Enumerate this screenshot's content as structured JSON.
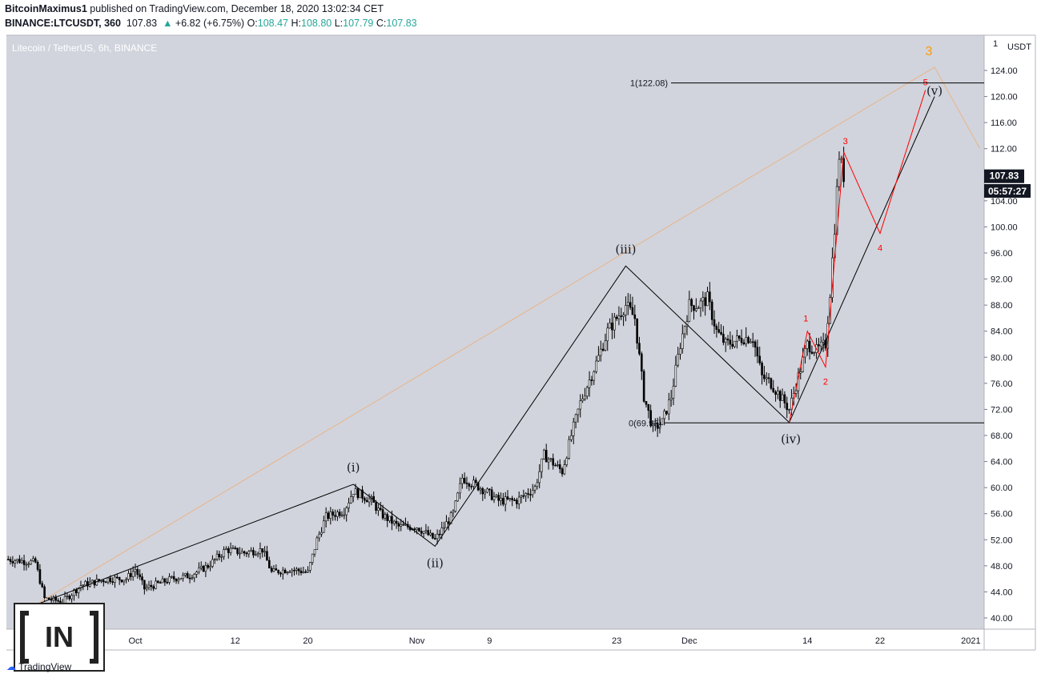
{
  "header": {
    "author": "BitcoinMaximus1",
    "published_text": "published on TradingView.com, December 18, 2020 13:02:34 CET",
    "symbol": "BINANCE:LTCUSDT, 360",
    "last": "107.83",
    "change": "+6.82 (+6.75%)",
    "open_label": "O:",
    "open": "108.47",
    "high_label": "H:",
    "high": "108.80",
    "low_label": "L:",
    "low": "107.79",
    "close_label": "C:",
    "close": "107.83"
  },
  "chart_title": "Litecoin / TetherUS, 6h, BINANCE",
  "currency": "USDT",
  "axis_top_label": "1",
  "price_tag": "107.83",
  "countdown": "05:57:27",
  "fib_top_label": "1(122.08)",
  "fib_bottom_label": "0(69.93)",
  "logo_text": "IN",
  "brand": "TradingView",
  "colors": {
    "background": "#d1d4dc",
    "candle": "#000000",
    "wave_major": "#000000",
    "wave_minor": "#ff0000",
    "wave_orange": "#ff9800",
    "trend_tan": "#e8b48a",
    "positive": "#26a69a"
  },
  "chart_data": {
    "type": "line",
    "title": "Litecoin / TetherUS, 6h, BINANCE",
    "ylabel": "USDT",
    "ylim": [
      38,
      126
    ],
    "y_ticks": [
      40,
      44,
      48,
      52,
      56,
      60,
      64,
      68,
      72,
      76,
      80,
      84,
      88,
      92,
      96,
      100,
      104,
      108,
      112,
      116,
      120,
      124
    ],
    "x_ticks": [
      {
        "label": "Oct",
        "date": "2020-10-01"
      },
      {
        "label": "12",
        "date": "2020-10-12"
      },
      {
        "label": "20",
        "date": "2020-10-20"
      },
      {
        "label": "Nov",
        "date": "2020-11-01"
      },
      {
        "label": "9",
        "date": "2020-11-09"
      },
      {
        "label": "23",
        "date": "2020-11-23"
      },
      {
        "label": "Dec",
        "date": "2020-12-01"
      },
      {
        "label": "14",
        "date": "2020-12-14"
      },
      {
        "label": "22",
        "date": "2020-12-22"
      },
      {
        "label": "2021",
        "date": "2021-01-01"
      }
    ],
    "price_path": [
      {
        "date": "2020-09-17",
        "price": 49.0
      },
      {
        "date": "2020-09-20",
        "price": 48.5
      },
      {
        "date": "2020-09-21",
        "price": 43.0
      },
      {
        "date": "2020-09-23",
        "price": 42.5
      },
      {
        "date": "2020-09-25",
        "price": 45.0
      },
      {
        "date": "2020-09-28",
        "price": 46.0
      },
      {
        "date": "2020-09-30",
        "price": 46.0
      },
      {
        "date": "2020-10-01",
        "price": 47.5
      },
      {
        "date": "2020-10-02",
        "price": 44.5
      },
      {
        "date": "2020-10-05",
        "price": 46.0
      },
      {
        "date": "2020-10-07",
        "price": 46.5
      },
      {
        "date": "2020-10-09",
        "price": 48.0
      },
      {
        "date": "2020-10-11",
        "price": 50.5
      },
      {
        "date": "2020-10-13",
        "price": 50.0
      },
      {
        "date": "2020-10-15",
        "price": 50.5
      },
      {
        "date": "2020-10-16",
        "price": 47.0
      },
      {
        "date": "2020-10-18",
        "price": 47.5
      },
      {
        "date": "2020-10-20",
        "price": 47.0
      },
      {
        "date": "2020-10-21",
        "price": 52.0
      },
      {
        "date": "2020-10-22",
        "price": 55.5
      },
      {
        "date": "2020-10-24",
        "price": 56.5
      },
      {
        "date": "2020-10-25",
        "price": 59.5
      },
      {
        "date": "2020-10-27",
        "price": 58.0
      },
      {
        "date": "2020-10-28",
        "price": 56.0
      },
      {
        "date": "2020-10-30",
        "price": 54.0
      },
      {
        "date": "2020-11-01",
        "price": 54.0
      },
      {
        "date": "2020-11-03",
        "price": 52.0
      },
      {
        "date": "2020-11-05",
        "price": 56.0
      },
      {
        "date": "2020-11-06",
        "price": 61.5
      },
      {
        "date": "2020-11-08",
        "price": 60.0
      },
      {
        "date": "2020-11-10",
        "price": 58.0
      },
      {
        "date": "2020-11-12",
        "price": 58.0
      },
      {
        "date": "2020-11-14",
        "price": 60.0
      },
      {
        "date": "2020-11-15",
        "price": 65.0
      },
      {
        "date": "2020-11-17",
        "price": 62.5
      },
      {
        "date": "2020-11-18",
        "price": 68.0
      },
      {
        "date": "2020-11-19",
        "price": 73.0
      },
      {
        "date": "2020-11-21",
        "price": 80.0
      },
      {
        "date": "2020-11-22",
        "price": 84.0
      },
      {
        "date": "2020-11-23",
        "price": 86.0
      },
      {
        "date": "2020-11-24",
        "price": 88.0
      },
      {
        "date": "2020-11-25",
        "price": 86.0
      },
      {
        "date": "2020-11-26",
        "price": 74.0
      },
      {
        "date": "2020-11-27",
        "price": 69.0
      },
      {
        "date": "2020-11-28",
        "price": 70.0
      },
      {
        "date": "2020-11-29",
        "price": 74.0
      },
      {
        "date": "2020-11-30",
        "price": 82.0
      },
      {
        "date": "2020-12-01",
        "price": 88.0
      },
      {
        "date": "2020-12-02",
        "price": 88.0
      },
      {
        "date": "2020-12-03",
        "price": 89.0
      },
      {
        "date": "2020-12-04",
        "price": 84.0
      },
      {
        "date": "2020-12-05",
        "price": 82.0
      },
      {
        "date": "2020-12-07",
        "price": 83.0
      },
      {
        "date": "2020-12-08",
        "price": 83.0
      },
      {
        "date": "2020-12-09",
        "price": 77.0
      },
      {
        "date": "2020-12-10",
        "price": 76.0
      },
      {
        "date": "2020-12-11",
        "price": 74.0
      },
      {
        "date": "2020-12-12",
        "price": 72.0
      },
      {
        "date": "2020-12-13",
        "price": 77.0
      },
      {
        "date": "2020-12-14",
        "price": 82.0
      },
      {
        "date": "2020-12-15",
        "price": 81.0
      },
      {
        "date": "2020-12-16",
        "price": 82.0
      },
      {
        "date": "2020-12-16T12",
        "price": 90.0
      },
      {
        "date": "2020-12-17",
        "price": 100.0
      },
      {
        "date": "2020-12-17T12",
        "price": 111.0
      },
      {
        "date": "2020-12-18",
        "price": 107.83
      }
    ],
    "waves_major": [
      {
        "label": "",
        "date": "2020-09-20",
        "price": 42.0
      },
      {
        "label": "(i)",
        "date": "2020-10-25",
        "price": 60.5
      },
      {
        "label": "(ii)",
        "date": "2020-11-03",
        "price": 51.0
      },
      {
        "label": "(iii)",
        "date": "2020-11-24",
        "price": 94.0
      },
      {
        "label": "(iv)",
        "date": "2020-12-12",
        "price": 70.0
      },
      {
        "label": "(v)",
        "date": "2020-12-28",
        "price": 120.0
      }
    ],
    "waves_minor": [
      {
        "label": "",
        "date": "2020-12-12",
        "price": 70.0
      },
      {
        "label": "1",
        "date": "2020-12-14",
        "price": 84.0
      },
      {
        "label": "2",
        "date": "2020-12-16",
        "price": 78.5
      },
      {
        "label": "3",
        "date": "2020-12-18",
        "price": 111.5
      },
      {
        "label": "4",
        "date": "2020-12-22",
        "price": 99.0
      },
      {
        "label": "5",
        "date": "2020-12-27",
        "price": 121.0
      }
    ],
    "trend_tan": [
      {
        "date": "2020-09-20",
        "price": 42.0
      },
      {
        "date": "2020-12-28",
        "price": 124.5
      },
      {
        "date": "2021-01-02",
        "price": 112.0
      }
    ],
    "wave_degree_label": "3",
    "fib_levels": [
      {
        "label": "1(122.08)",
        "price": 122.08
      },
      {
        "label": "0(69.93)",
        "price": 69.93
      }
    ],
    "last_price": 107.83,
    "grid": false
  }
}
